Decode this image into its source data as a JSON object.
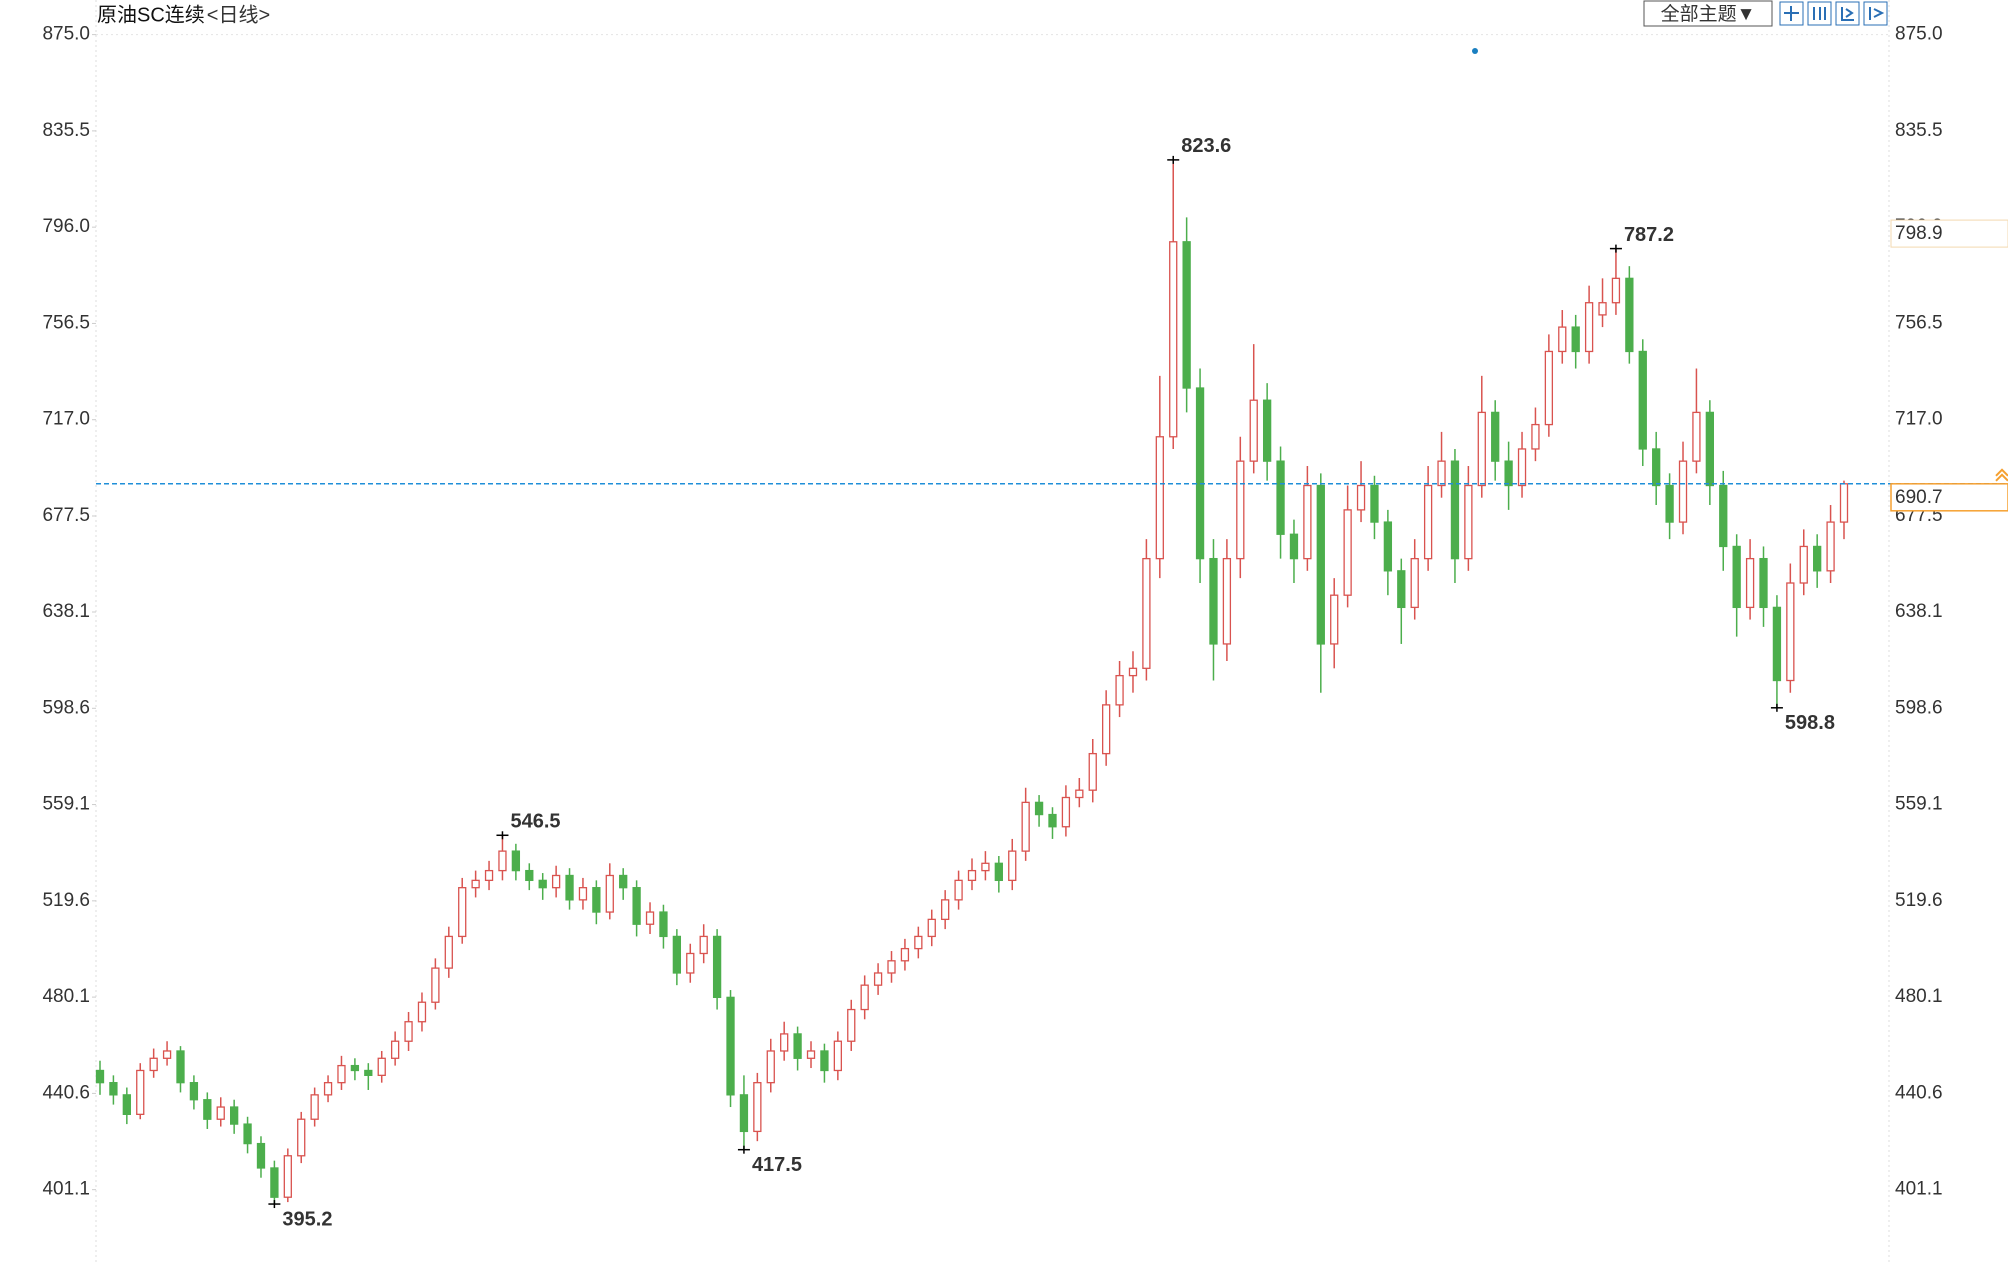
{
  "chart_data": {
    "type": "candlestick",
    "title": "原油SC连续",
    "period": "<日线>",
    "theme_button": "全部主题▼",
    "ylim": [
      370.6,
      889.2
    ],
    "yticks": [
      {
        "value": 875,
        "label": "875.0"
      },
      835.5,
      {
        "value": 796,
        "label": "796.0"
      },
      756.5,
      {
        "value": 717,
        "label": "717.0"
      },
      677.5,
      638.1,
      598.6,
      559.1,
      519.6,
      480.1,
      440.6,
      401.1
    ],
    "up_color": "#d9534f",
    "down_color": "#4cae4c",
    "line_color": "#1f8fd8",
    "accent_color": "#f5a030",
    "last_price": 690.7,
    "marker_price": 798.9,
    "annotations": [
      395.2,
      546.5,
      417.5,
      823.6,
      787.2,
      598.8
    ],
    "ohlc": [
      [
        450,
        454,
        440,
        445
      ],
      [
        445,
        448,
        436,
        440
      ],
      [
        440,
        443,
        428,
        432
      ],
      [
        432,
        453,
        430,
        450
      ],
      [
        450,
        459,
        447,
        455
      ],
      [
        455,
        462,
        452,
        458
      ],
      [
        458,
        460,
        441,
        445
      ],
      [
        445,
        448,
        434,
        438
      ],
      [
        438,
        441,
        426,
        430
      ],
      [
        430,
        439,
        427,
        435
      ],
      [
        435,
        438,
        424,
        428
      ],
      [
        428,
        431,
        416,
        420
      ],
      [
        420,
        423,
        406,
        410
      ],
      [
        410,
        413,
        395.2,
        398
      ],
      [
        398,
        418,
        396,
        415
      ],
      [
        415,
        433,
        412,
        430
      ],
      [
        430,
        443,
        427,
        440
      ],
      [
        440,
        448,
        437,
        445
      ],
      [
        445,
        456,
        442,
        452
      ],
      [
        452,
        455,
        446,
        450
      ],
      [
        450,
        453,
        442,
        448
      ],
      [
        448,
        458,
        445,
        455
      ],
      [
        455,
        466,
        452,
        462
      ],
      [
        462,
        474,
        458,
        470
      ],
      [
        470,
        482,
        466,
        478
      ],
      [
        478,
        496,
        475,
        492
      ],
      [
        492,
        509,
        488,
        505
      ],
      [
        505,
        529,
        502,
        525
      ],
      [
        525,
        532,
        521,
        528
      ],
      [
        528,
        536,
        524,
        532
      ],
      [
        532,
        546.5,
        528,
        540
      ],
      [
        540,
        543,
        528,
        532
      ],
      [
        532,
        535,
        524,
        528
      ],
      [
        528,
        531,
        520,
        525
      ],
      [
        525,
        534,
        521,
        530
      ],
      [
        530,
        533,
        516,
        520
      ],
      [
        520,
        529,
        516,
        525
      ],
      [
        525,
        528,
        510,
        515
      ],
      [
        515,
        535,
        512,
        530
      ],
      [
        530,
        533,
        520,
        525
      ],
      [
        525,
        528,
        505,
        510
      ],
      [
        510,
        519,
        506,
        515
      ],
      [
        515,
        518,
        500,
        505
      ],
      [
        505,
        508,
        485,
        490
      ],
      [
        490,
        502,
        486,
        498
      ],
      [
        498,
        510,
        494,
        505
      ],
      [
        505,
        508,
        475,
        480
      ],
      [
        480,
        483,
        435,
        440
      ],
      [
        440,
        448,
        417.5,
        425
      ],
      [
        425,
        449,
        421,
        445
      ],
      [
        445,
        463,
        441,
        458
      ],
      [
        458,
        470,
        454,
        465
      ],
      [
        465,
        468,
        450,
        455
      ],
      [
        455,
        462,
        451,
        458
      ],
      [
        458,
        461,
        445,
        450
      ],
      [
        450,
        466,
        446,
        462
      ],
      [
        462,
        479,
        458,
        475
      ],
      [
        475,
        489,
        471,
        485
      ],
      [
        485,
        494,
        481,
        490
      ],
      [
        490,
        499,
        486,
        495
      ],
      [
        495,
        504,
        491,
        500
      ],
      [
        500,
        509,
        496,
        505
      ],
      [
        505,
        516,
        501,
        512
      ],
      [
        512,
        524,
        508,
        520
      ],
      [
        520,
        532,
        516,
        528
      ],
      [
        528,
        537,
        524,
        532
      ],
      [
        532,
        540,
        528,
        535
      ],
      [
        535,
        538,
        523,
        528
      ],
      [
        528,
        545,
        524,
        540
      ],
      [
        540,
        566,
        536,
        560
      ],
      [
        560,
        563,
        550,
        555
      ],
      [
        555,
        558,
        545,
        550
      ],
      [
        550,
        567,
        546,
        562
      ],
      [
        562,
        570,
        558,
        565
      ],
      [
        565,
        586,
        560,
        580
      ],
      [
        580,
        606,
        575,
        600
      ],
      [
        600,
        618,
        595,
        612
      ],
      [
        612,
        622,
        605,
        615
      ],
      [
        615,
        668,
        610,
        660
      ],
      [
        660,
        735,
        652,
        710
      ],
      [
        710,
        823.6,
        705,
        790
      ],
      [
        790,
        800,
        720,
        730
      ],
      [
        730,
        738,
        650,
        660
      ],
      [
        660,
        668,
        610,
        625
      ],
      [
        625,
        668,
        618,
        660
      ],
      [
        660,
        710,
        652,
        700
      ],
      [
        700,
        748,
        695,
        725
      ],
      [
        725,
        732,
        692,
        700
      ],
      [
        700,
        706,
        660,
        670
      ],
      [
        670,
        676,
        650,
        660
      ],
      [
        660,
        698,
        655,
        690
      ],
      [
        690,
        695,
        605,
        625
      ],
      [
        625,
        652,
        615,
        645
      ],
      [
        645,
        690,
        640,
        680
      ],
      [
        680,
        700,
        675,
        690
      ],
      [
        690,
        694,
        668,
        675
      ],
      [
        675,
        680,
        645,
        655
      ],
      [
        655,
        660,
        625,
        640
      ],
      [
        640,
        668,
        635,
        660
      ],
      [
        660,
        698,
        655,
        690
      ],
      [
        690,
        712,
        685,
        700
      ],
      [
        700,
        705,
        650,
        660
      ],
      [
        660,
        698,
        655,
        690
      ],
      [
        690,
        735,
        685,
        720
      ],
      [
        720,
        725,
        692,
        700
      ],
      [
        700,
        708,
        680,
        690
      ],
      [
        690,
        712,
        685,
        705
      ],
      [
        705,
        722,
        700,
        715
      ],
      [
        715,
        752,
        710,
        745
      ],
      [
        745,
        762,
        740,
        755
      ],
      [
        755,
        760,
        738,
        745
      ],
      [
        745,
        772,
        740,
        765
      ],
      [
        760,
        775,
        755,
        765
      ],
      [
        765,
        787.2,
        760,
        775
      ],
      [
        775,
        780,
        740,
        745
      ],
      [
        745,
        750,
        698,
        705
      ],
      [
        705,
        712,
        682,
        690
      ],
      [
        690,
        695,
        668,
        675
      ],
      [
        675,
        708,
        670,
        700
      ],
      [
        700,
        738,
        695,
        720
      ],
      [
        720,
        725,
        682,
        690
      ],
      [
        690,
        696,
        655,
        665
      ],
      [
        665,
        670,
        628,
        640
      ],
      [
        640,
        668,
        635,
        660
      ],
      [
        660,
        665,
        632,
        640
      ],
      [
        640,
        645,
        598.8,
        610
      ],
      [
        610,
        658,
        605,
        650
      ],
      [
        650,
        672,
        645,
        665
      ],
      [
        665,
        670,
        648,
        655
      ],
      [
        655,
        682,
        650,
        675
      ],
      [
        675,
        692,
        668,
        690.7
      ]
    ]
  }
}
